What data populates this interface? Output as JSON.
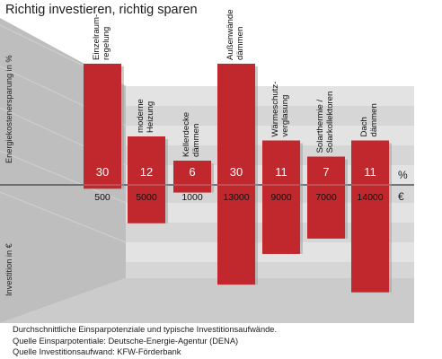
{
  "chart_data": {
    "type": "bar",
    "title": "Richtig investieren, richtig sparen",
    "categories": [
      [
        "Einzelraum-",
        "regelung"
      ],
      [
        "moderne",
        "Heizung"
      ],
      [
        "Kellerdecke",
        "dämmen"
      ],
      [
        "Außenwände",
        "dämmen"
      ],
      [
        "Wärmeschutz-",
        "verglasung"
      ],
      [
        "Solarthermie /",
        "Solarkollektoren"
      ],
      [
        "Dach",
        "dämmen"
      ]
    ],
    "series": [
      {
        "name": "Energiekostenersparung in %",
        "unit": "%",
        "values": [
          30,
          12,
          6,
          30,
          11,
          7,
          11
        ],
        "labels": [
          "30",
          "12",
          "6",
          "30",
          "11",
          "7",
          "11"
        ]
      },
      {
        "name": "Investition in €",
        "unit": "€",
        "values": [
          500,
          5000,
          1000,
          13000,
          9000,
          7000,
          14000
        ],
        "labels": [
          "500",
          "5000",
          "1000",
          "13000",
          "9000",
          "7000",
          "14000"
        ]
      }
    ],
    "ylabel_top": "Energiekostenersparung in %",
    "ylabel_bottom": "Investition in €",
    "unit_top": "%",
    "unit_bottom": "€",
    "grid": true
  },
  "footer": {
    "line1": "Durchschnittliche Einsparpotenziale und typische Investitionsaufwände.",
    "line2": "Quelle Einsparpotentiale: Deutsche-Energie-Agentur (DENA)",
    "line3": "Quelle Investitionsaufwand: KFW-Förderbank"
  },
  "colors": {
    "bar": "#c0282d",
    "bar_shadow": "#8e1a1e",
    "panel_back": "#d6d6d6",
    "band": "#cfcfcf",
    "wall": "#bebebe",
    "floor": "#cbcbcb",
    "axis": "#555555"
  }
}
